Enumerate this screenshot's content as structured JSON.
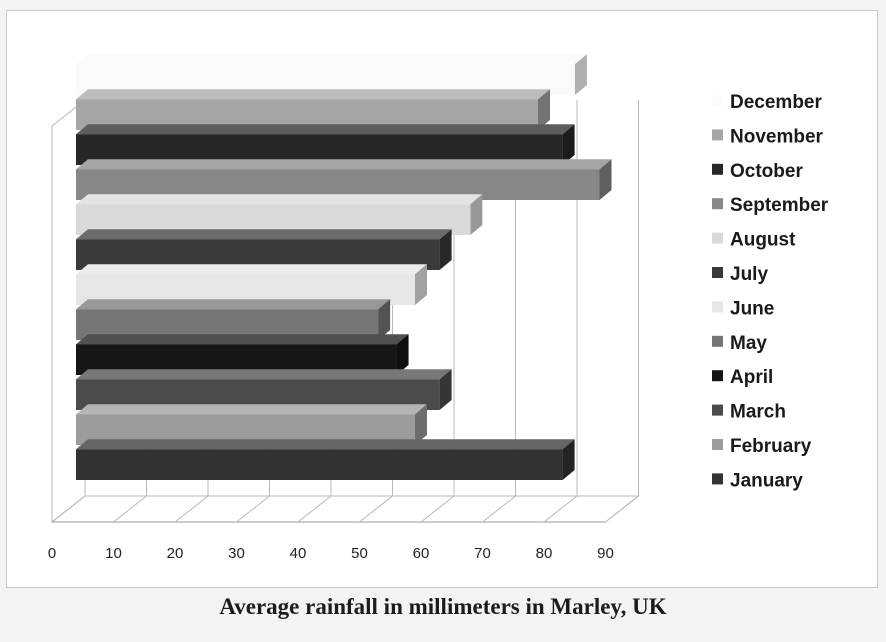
{
  "chart_data": {
    "type": "bar",
    "orientation": "horizontal",
    "style": "3d",
    "title": "Average rainfall in millimeters in Marley, UK",
    "xlim": [
      0,
      90
    ],
    "xticks": [
      "0",
      "10",
      "20",
      "30",
      "40",
      "50",
      "60",
      "70",
      "80",
      "90"
    ],
    "grid": true,
    "legend_position": "right",
    "categories": [
      "January",
      "February",
      "March",
      "April",
      "May",
      "June",
      "July",
      "August",
      "September",
      "October",
      "November",
      "December"
    ],
    "values": [
      84,
      60,
      64,
      57,
      54,
      60,
      64,
      69,
      90,
      84,
      80,
      86
    ],
    "colors": [
      "#333333",
      "#9c9c9c",
      "#4b4b4b",
      "#161616",
      "#767676",
      "#e6e6e6",
      "#3a3a3a",
      "#d9d9d9",
      "#878787",
      "#272727",
      "#a6a6a6",
      "#fafafa"
    ],
    "legend_order": [
      "December",
      "November",
      "October",
      "September",
      "August",
      "July",
      "June",
      "May",
      "April",
      "March",
      "February",
      "January"
    ]
  }
}
